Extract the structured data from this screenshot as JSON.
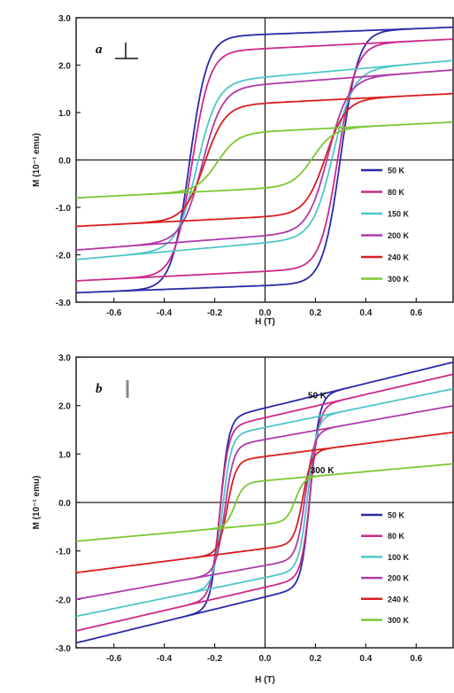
{
  "chart_data": [
    {
      "type": "line",
      "panel_label": "a",
      "orientation_symbol": "⊥",
      "xlabel": "H (T)",
      "ylabel": "M (10⁻¹ emu)",
      "xlim": [
        -0.75,
        0.75
      ],
      "ylim": [
        -3.0,
        3.0
      ],
      "x_ticks": [
        "-0.6",
        "-0.4",
        "-0.2",
        "0.0",
        "0.2",
        "0.4",
        "0.6"
      ],
      "y_ticks": [
        "3.0",
        "2.0",
        "1.0",
        "0.0",
        "-1.0",
        "-2.0",
        "-3.0"
      ],
      "legend_position": "lower-right",
      "annotations": [],
      "series": [
        {
          "name": "50 K",
          "color": "#2a2aa8",
          "Ms": 2.8,
          "Mr": 2.65,
          "Hc": 0.3,
          "w": 0.07
        },
        {
          "name": "80 K",
          "color": "#cc2a8a",
          "Ms": 2.55,
          "Mr": 2.35,
          "Hc": 0.29,
          "w": 0.07
        },
        {
          "name": "150 K",
          "color": "#4fc6c6",
          "Ms": 2.1,
          "Mr": 1.75,
          "Hc": 0.27,
          "w": 0.08
        },
        {
          "name": "200 K",
          "color": "#b03aa8",
          "Ms": 1.9,
          "Mr": 1.6,
          "Hc": 0.25,
          "w": 0.08
        },
        {
          "name": "240 K",
          "color": "#d81e1e",
          "Ms": 1.4,
          "Mr": 1.2,
          "Hc": 0.24,
          "w": 0.08
        },
        {
          "name": "300 K",
          "color": "#7ac832",
          "Ms": 0.8,
          "Mr": 0.6,
          "Hc": 0.19,
          "w": 0.08
        }
      ]
    },
    {
      "type": "line",
      "panel_label": "b",
      "orientation_symbol": "|",
      "xlabel": "H (T)",
      "ylabel": "M (10⁻¹ emu)",
      "xlim": [
        -0.75,
        0.75
      ],
      "ylim": [
        -3.0,
        3.0
      ],
      "x_ticks": [
        "-0.6",
        "-0.4",
        "-0.2",
        "0.0",
        "0.2",
        "0.4",
        "0.6"
      ],
      "y_ticks": [
        "3.0",
        "2.0",
        "1.0",
        "0.0",
        "-1.0",
        "-2.0",
        "-3.0"
      ],
      "legend_position": "lower-right",
      "annotations": [
        {
          "text": "50 K",
          "x": 0.17,
          "y": 2.15
        },
        {
          "text": "300 K",
          "x": 0.18,
          "y": 0.6
        }
      ],
      "series": [
        {
          "name": "50 K",
          "color": "#2a2aa8",
          "Ms": 2.9,
          "Mr": 1.95,
          "Hc": 0.18,
          "w": 0.035
        },
        {
          "name": "80 K",
          "color": "#cc2a8a",
          "Ms": 2.65,
          "Mr": 1.75,
          "Hc": 0.18,
          "w": 0.035
        },
        {
          "name": "100 K",
          "color": "#4fc6c6",
          "Ms": 2.35,
          "Mr": 1.55,
          "Hc": 0.17,
          "w": 0.035
        },
        {
          "name": "200 K",
          "color": "#b03aa8",
          "Ms": 2.0,
          "Mr": 1.3,
          "Hc": 0.16,
          "w": 0.035
        },
        {
          "name": "240 K",
          "color": "#d81e1e",
          "Ms": 1.45,
          "Mr": 0.95,
          "Hc": 0.15,
          "w": 0.035
        },
        {
          "name": "300 K",
          "color": "#7ac832",
          "Ms": 0.8,
          "Mr": 0.45,
          "Hc": 0.12,
          "w": 0.035
        }
      ]
    }
  ]
}
